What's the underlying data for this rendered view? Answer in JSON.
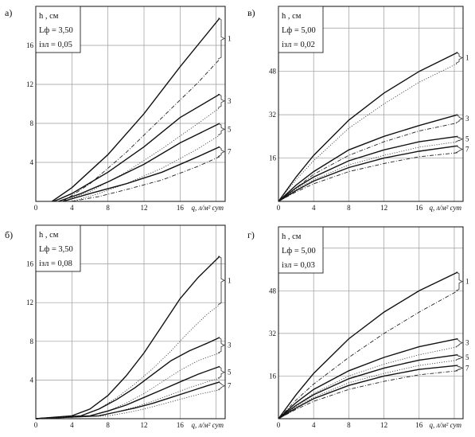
{
  "chart_data": [
    {
      "panel": "а)",
      "type": "line",
      "info": [
        "h , см",
        "Lф = 3,50",
        "iзл = 0,05"
      ],
      "xlabel": "q, л/м² сут",
      "xlim": [
        0,
        21
      ],
      "ylim": [
        0,
        20
      ],
      "xticks": [
        "0",
        "4",
        "8",
        "12",
        "16"
      ],
      "yticks": [
        "4",
        "8",
        "12",
        "16"
      ],
      "xtick_values": [
        0,
        4,
        8,
        12,
        16
      ],
      "ytick_values": [
        4,
        8,
        12,
        16
      ],
      "curve_labels": [
        "1",
        "3",
        "5",
        "7"
      ],
      "series": [
        {
          "label": "1",
          "style": "solid",
          "x": [
            1.8,
            4,
            8,
            12,
            16,
            20.4
          ],
          "y": [
            0,
            1.4,
            4.8,
            9.0,
            13.8,
            18.8
          ]
        },
        {
          "label": "1",
          "style": "dashdot",
          "x": [
            3,
            6,
            10,
            14,
            18,
            20.4
          ],
          "y": [
            0,
            1.8,
            5.0,
            8.6,
            12.2,
            14.6
          ]
        },
        {
          "label": "3",
          "style": "solid",
          "x": [
            2,
            4,
            8,
            12,
            16,
            20.4
          ],
          "y": [
            0,
            0.8,
            3.0,
            5.6,
            8.6,
            11.0
          ]
        },
        {
          "label": "3",
          "style": "dotted",
          "x": [
            3,
            6,
            10,
            14,
            18,
            20.4
          ],
          "y": [
            0,
            1.0,
            3.0,
            5.4,
            8.0,
            9.6
          ]
        },
        {
          "label": "5",
          "style": "solid",
          "x": [
            2.5,
            5,
            8,
            12,
            16,
            20.4
          ],
          "y": [
            0,
            0.8,
            2.0,
            3.8,
            6.0,
            8.0
          ]
        },
        {
          "label": "5",
          "style": "dotted",
          "x": [
            4,
            7,
            10,
            14,
            18,
            20.4
          ],
          "y": [
            0,
            0.8,
            1.8,
            3.4,
            5.4,
            6.8
          ]
        },
        {
          "label": "7",
          "style": "solid",
          "x": [
            3,
            6,
            10,
            14,
            18,
            20.4
          ],
          "y": [
            0,
            0.8,
            1.8,
            3.0,
            4.6,
            5.6
          ]
        },
        {
          "label": "7",
          "style": "dashdot",
          "x": [
            4,
            7,
            10,
            14,
            18,
            20.4
          ],
          "y": [
            0,
            0.5,
            1.2,
            2.2,
            3.6,
            4.6
          ]
        }
      ]
    },
    {
      "panel": "в)",
      "type": "line",
      "info": [
        "h , см",
        "Lф = 5,00",
        "iзл = 0,02"
      ],
      "xlabel": "q, л/м² сут",
      "xlim": [
        0,
        21
      ],
      "ylim": [
        0,
        72
      ],
      "xticks": [
        "0",
        "4",
        "8",
        "12",
        "16"
      ],
      "yticks": [
        "16",
        "32",
        "48"
      ],
      "xtick_values": [
        0,
        4,
        8,
        12,
        16
      ],
      "ytick_values": [
        16,
        32,
        48
      ],
      "curve_labels": [
        "1",
        "3",
        "5",
        "7"
      ],
      "series": [
        {
          "label": "1",
          "style": "solid",
          "x": [
            0,
            2,
            4,
            8,
            12,
            16,
            20.4
          ],
          "y": [
            0,
            9,
            17,
            30,
            40,
            48,
            55
          ]
        },
        {
          "label": "1",
          "style": "dotted",
          "x": [
            0,
            2,
            4,
            8,
            12,
            16,
            20.4
          ],
          "y": [
            0,
            8,
            15,
            27,
            36,
            44,
            51
          ]
        },
        {
          "label": "3",
          "style": "solid",
          "x": [
            0,
            2,
            4,
            8,
            12,
            16,
            20.4
          ],
          "y": [
            0,
            6,
            11,
            19,
            24,
            28,
            32
          ]
        },
        {
          "label": "3",
          "style": "dashdot",
          "x": [
            0,
            2,
            4,
            8,
            12,
            16,
            20.4
          ],
          "y": [
            0,
            5,
            10,
            17,
            22,
            26,
            29
          ]
        },
        {
          "label": "5",
          "style": "solid",
          "x": [
            0,
            2,
            4,
            8,
            12,
            16,
            20.4
          ],
          "y": [
            0,
            5,
            9,
            15,
            19,
            22,
            24
          ]
        },
        {
          "label": "5",
          "style": "dotted",
          "x": [
            0,
            2,
            4,
            8,
            12,
            16,
            20.4
          ],
          "y": [
            0,
            4.5,
            8,
            13.5,
            17,
            20,
            22
          ]
        },
        {
          "label": "7",
          "style": "solid",
          "x": [
            0,
            2,
            4,
            8,
            12,
            16,
            20.4
          ],
          "y": [
            0,
            4,
            7.5,
            12.5,
            16,
            18.5,
            20.5
          ]
        },
        {
          "label": "7",
          "style": "dashdot",
          "x": [
            0,
            2,
            4,
            8,
            12,
            16,
            20.4
          ],
          "y": [
            0,
            3.5,
            6.5,
            11,
            14,
            16.5,
            18
          ]
        }
      ]
    },
    {
      "panel": "б)",
      "type": "line",
      "info": [
        "h , см",
        "Lф = 3,50",
        "iзл = 0,08"
      ],
      "xlabel": "q, л/м² сут",
      "xlim": [
        0,
        21
      ],
      "ylim": [
        0,
        20
      ],
      "xticks": [
        "0",
        "4",
        "8",
        "12",
        "16"
      ],
      "yticks": [
        "4",
        "8",
        "12",
        "16"
      ],
      "xtick_values": [
        0,
        4,
        8,
        12,
        16
      ],
      "ytick_values": [
        4,
        8,
        12,
        16
      ],
      "curve_labels": [
        "1",
        "3",
        "5",
        "7"
      ],
      "series": [
        {
          "label": "1",
          "style": "solid",
          "x": [
            0,
            4,
            6,
            8,
            10,
            12,
            14,
            16,
            18,
            20.4
          ],
          "y": [
            0,
            0.3,
            1.0,
            2.4,
            4.4,
            6.8,
            9.6,
            12.4,
            14.6,
            16.8
          ]
        },
        {
          "label": "1",
          "style": "dotted",
          "x": [
            0,
            5,
            7,
            9,
            11,
            13,
            15,
            17,
            19,
            20.4
          ],
          "y": [
            0,
            0.3,
            1.0,
            2.2,
            3.6,
            5.2,
            7.0,
            9.0,
            10.8,
            11.8
          ]
        },
        {
          "label": "3",
          "style": "solid",
          "x": [
            0,
            5,
            7,
            9,
            11,
            13,
            15,
            17,
            19,
            20.4
          ],
          "y": [
            0,
            0.3,
            1.0,
            2.0,
            3.2,
            4.6,
            6.0,
            7.0,
            7.8,
            8.4
          ]
        },
        {
          "label": "3",
          "style": "dotted",
          "x": [
            0,
            6,
            8,
            10,
            12,
            14,
            16,
            18,
            20.4
          ],
          "y": [
            0,
            0.3,
            0.8,
            1.6,
            2.6,
            3.8,
            5.0,
            6.0,
            6.8
          ]
        },
        {
          "label": "5",
          "style": "solid",
          "x": [
            0,
            6,
            8,
            10,
            12,
            14,
            16,
            18,
            20.4
          ],
          "y": [
            0,
            0.3,
            0.8,
            1.4,
            2.2,
            3.0,
            3.8,
            4.6,
            5.4
          ]
        },
        {
          "label": "5",
          "style": "dotted",
          "x": [
            0,
            7,
            9,
            11,
            13,
            15,
            17,
            19,
            20.4
          ],
          "y": [
            0,
            0.3,
            0.7,
            1.2,
            1.8,
            2.5,
            3.2,
            3.8,
            4.2
          ]
        },
        {
          "label": "7",
          "style": "solid",
          "x": [
            0,
            7,
            9,
            11,
            13,
            15,
            17,
            19,
            20.4
          ],
          "y": [
            0,
            0.3,
            0.7,
            1.1,
            1.6,
            2.2,
            2.8,
            3.4,
            3.8
          ]
        },
        {
          "label": "7",
          "style": "dotted",
          "x": [
            0,
            8,
            10,
            12,
            14,
            16,
            18,
            20.4
          ],
          "y": [
            0,
            0.3,
            0.6,
            1.0,
            1.5,
            2.0,
            2.5,
            3.0
          ]
        }
      ]
    },
    {
      "panel": "г)",
      "type": "line",
      "info": [
        "h , см",
        "Lф = 5,00",
        "iзл = 0,03"
      ],
      "xlabel": "q, л/м² сут",
      "xlim": [
        0,
        21
      ],
      "ylim": [
        0,
        72
      ],
      "xticks": [
        "0",
        "4",
        "8",
        "12",
        "16"
      ],
      "yticks": [
        "16",
        "32",
        "48"
      ],
      "xtick_values": [
        0,
        4,
        8,
        12,
        16
      ],
      "ytick_values": [
        16,
        32,
        48
      ],
      "curve_labels": [
        "1",
        "3",
        "5",
        "7"
      ],
      "series": [
        {
          "label": "1",
          "style": "solid",
          "x": [
            0,
            2,
            4,
            8,
            12,
            16,
            20.4
          ],
          "y": [
            0,
            9,
            17,
            30,
            40,
            48,
            55
          ]
        },
        {
          "label": "1",
          "style": "dashdot",
          "x": [
            0,
            2,
            4,
            8,
            12,
            16,
            20.4
          ],
          "y": [
            0,
            7,
            13,
            23,
            32,
            40,
            48
          ]
        },
        {
          "label": "3",
          "style": "solid",
          "x": [
            0,
            2,
            4,
            8,
            12,
            16,
            20.4
          ],
          "y": [
            0,
            6,
            11,
            18,
            23,
            27,
            30
          ]
        },
        {
          "label": "3",
          "style": "dotted",
          "x": [
            0,
            2,
            4,
            8,
            12,
            16,
            20.4
          ],
          "y": [
            0,
            5,
            9.5,
            16,
            20.5,
            24,
            27
          ]
        },
        {
          "label": "5",
          "style": "solid",
          "x": [
            0,
            2,
            4,
            8,
            12,
            16,
            20.4
          ],
          "y": [
            0,
            5,
            9,
            15,
            19,
            22,
            24
          ]
        },
        {
          "label": "5",
          "style": "dotted",
          "x": [
            0,
            2,
            4,
            8,
            12,
            16,
            20.4
          ],
          "y": [
            0,
            4.5,
            8,
            13.5,
            17,
            20,
            22
          ]
        },
        {
          "label": "7",
          "style": "solid",
          "x": [
            0,
            2,
            4,
            8,
            12,
            16,
            20.4
          ],
          "y": [
            0,
            4,
            7.5,
            12.5,
            16,
            18.5,
            20
          ]
        },
        {
          "label": "7",
          "style": "dashdot",
          "x": [
            0,
            2,
            4,
            8,
            12,
            16,
            20.4
          ],
          "y": [
            0,
            3.5,
            6.5,
            11,
            14,
            16.5,
            18
          ]
        }
      ]
    }
  ]
}
